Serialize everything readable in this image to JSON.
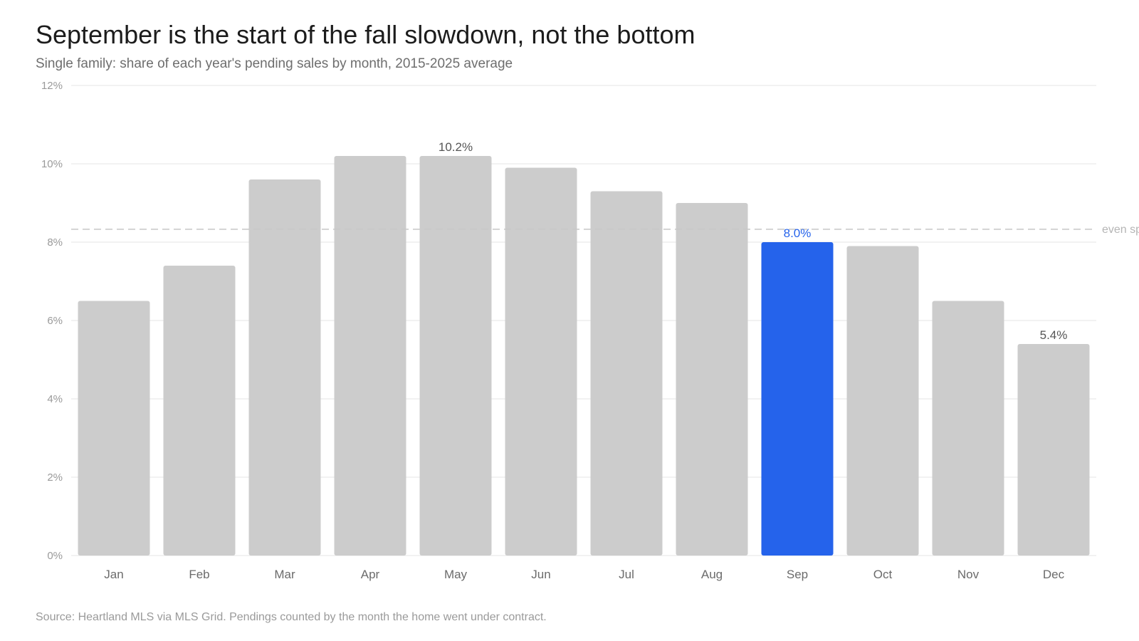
{
  "chart_data": {
    "type": "bar",
    "title": "September is the start of the fall slowdown, not the bottom",
    "subtitle": "Single family: share of each year's pending sales by month, 2015-2025 average",
    "source": "Source: Heartland MLS via MLS Grid. Pendings counted by the month the home went under contract.",
    "categories": [
      "Jan",
      "Feb",
      "Mar",
      "Apr",
      "May",
      "Jun",
      "Jul",
      "Aug",
      "Sep",
      "Oct",
      "Nov",
      "Dec"
    ],
    "values": [
      6.5,
      7.4,
      9.6,
      10.2,
      10.2,
      9.9,
      9.3,
      9.0,
      8.0,
      7.9,
      6.5,
      5.4
    ],
    "unit": "%",
    "ylim": [
      0,
      12
    ],
    "yticks": [
      0,
      2,
      4,
      6,
      8,
      10,
      12
    ],
    "ytick_labels": [
      "0%",
      "2%",
      "4%",
      "6%",
      "8%",
      "10%",
      "12%"
    ],
    "grid": true,
    "legend": "none",
    "highlight_category": "Sep",
    "data_labels": [
      {
        "category": "May",
        "text": "10.2%"
      },
      {
        "category": "Sep",
        "text": "8.0%"
      },
      {
        "category": "Dec",
        "text": "5.4%"
      }
    ],
    "reference_line": {
      "value": 8.33,
      "style": "dashed",
      "label": "even sp"
    },
    "colors": {
      "bar": "#cccccc",
      "highlight": "#2563eb",
      "grid": "#e6e6e6",
      "reference": "#c8c8c8",
      "label_default": "#555555"
    }
  }
}
